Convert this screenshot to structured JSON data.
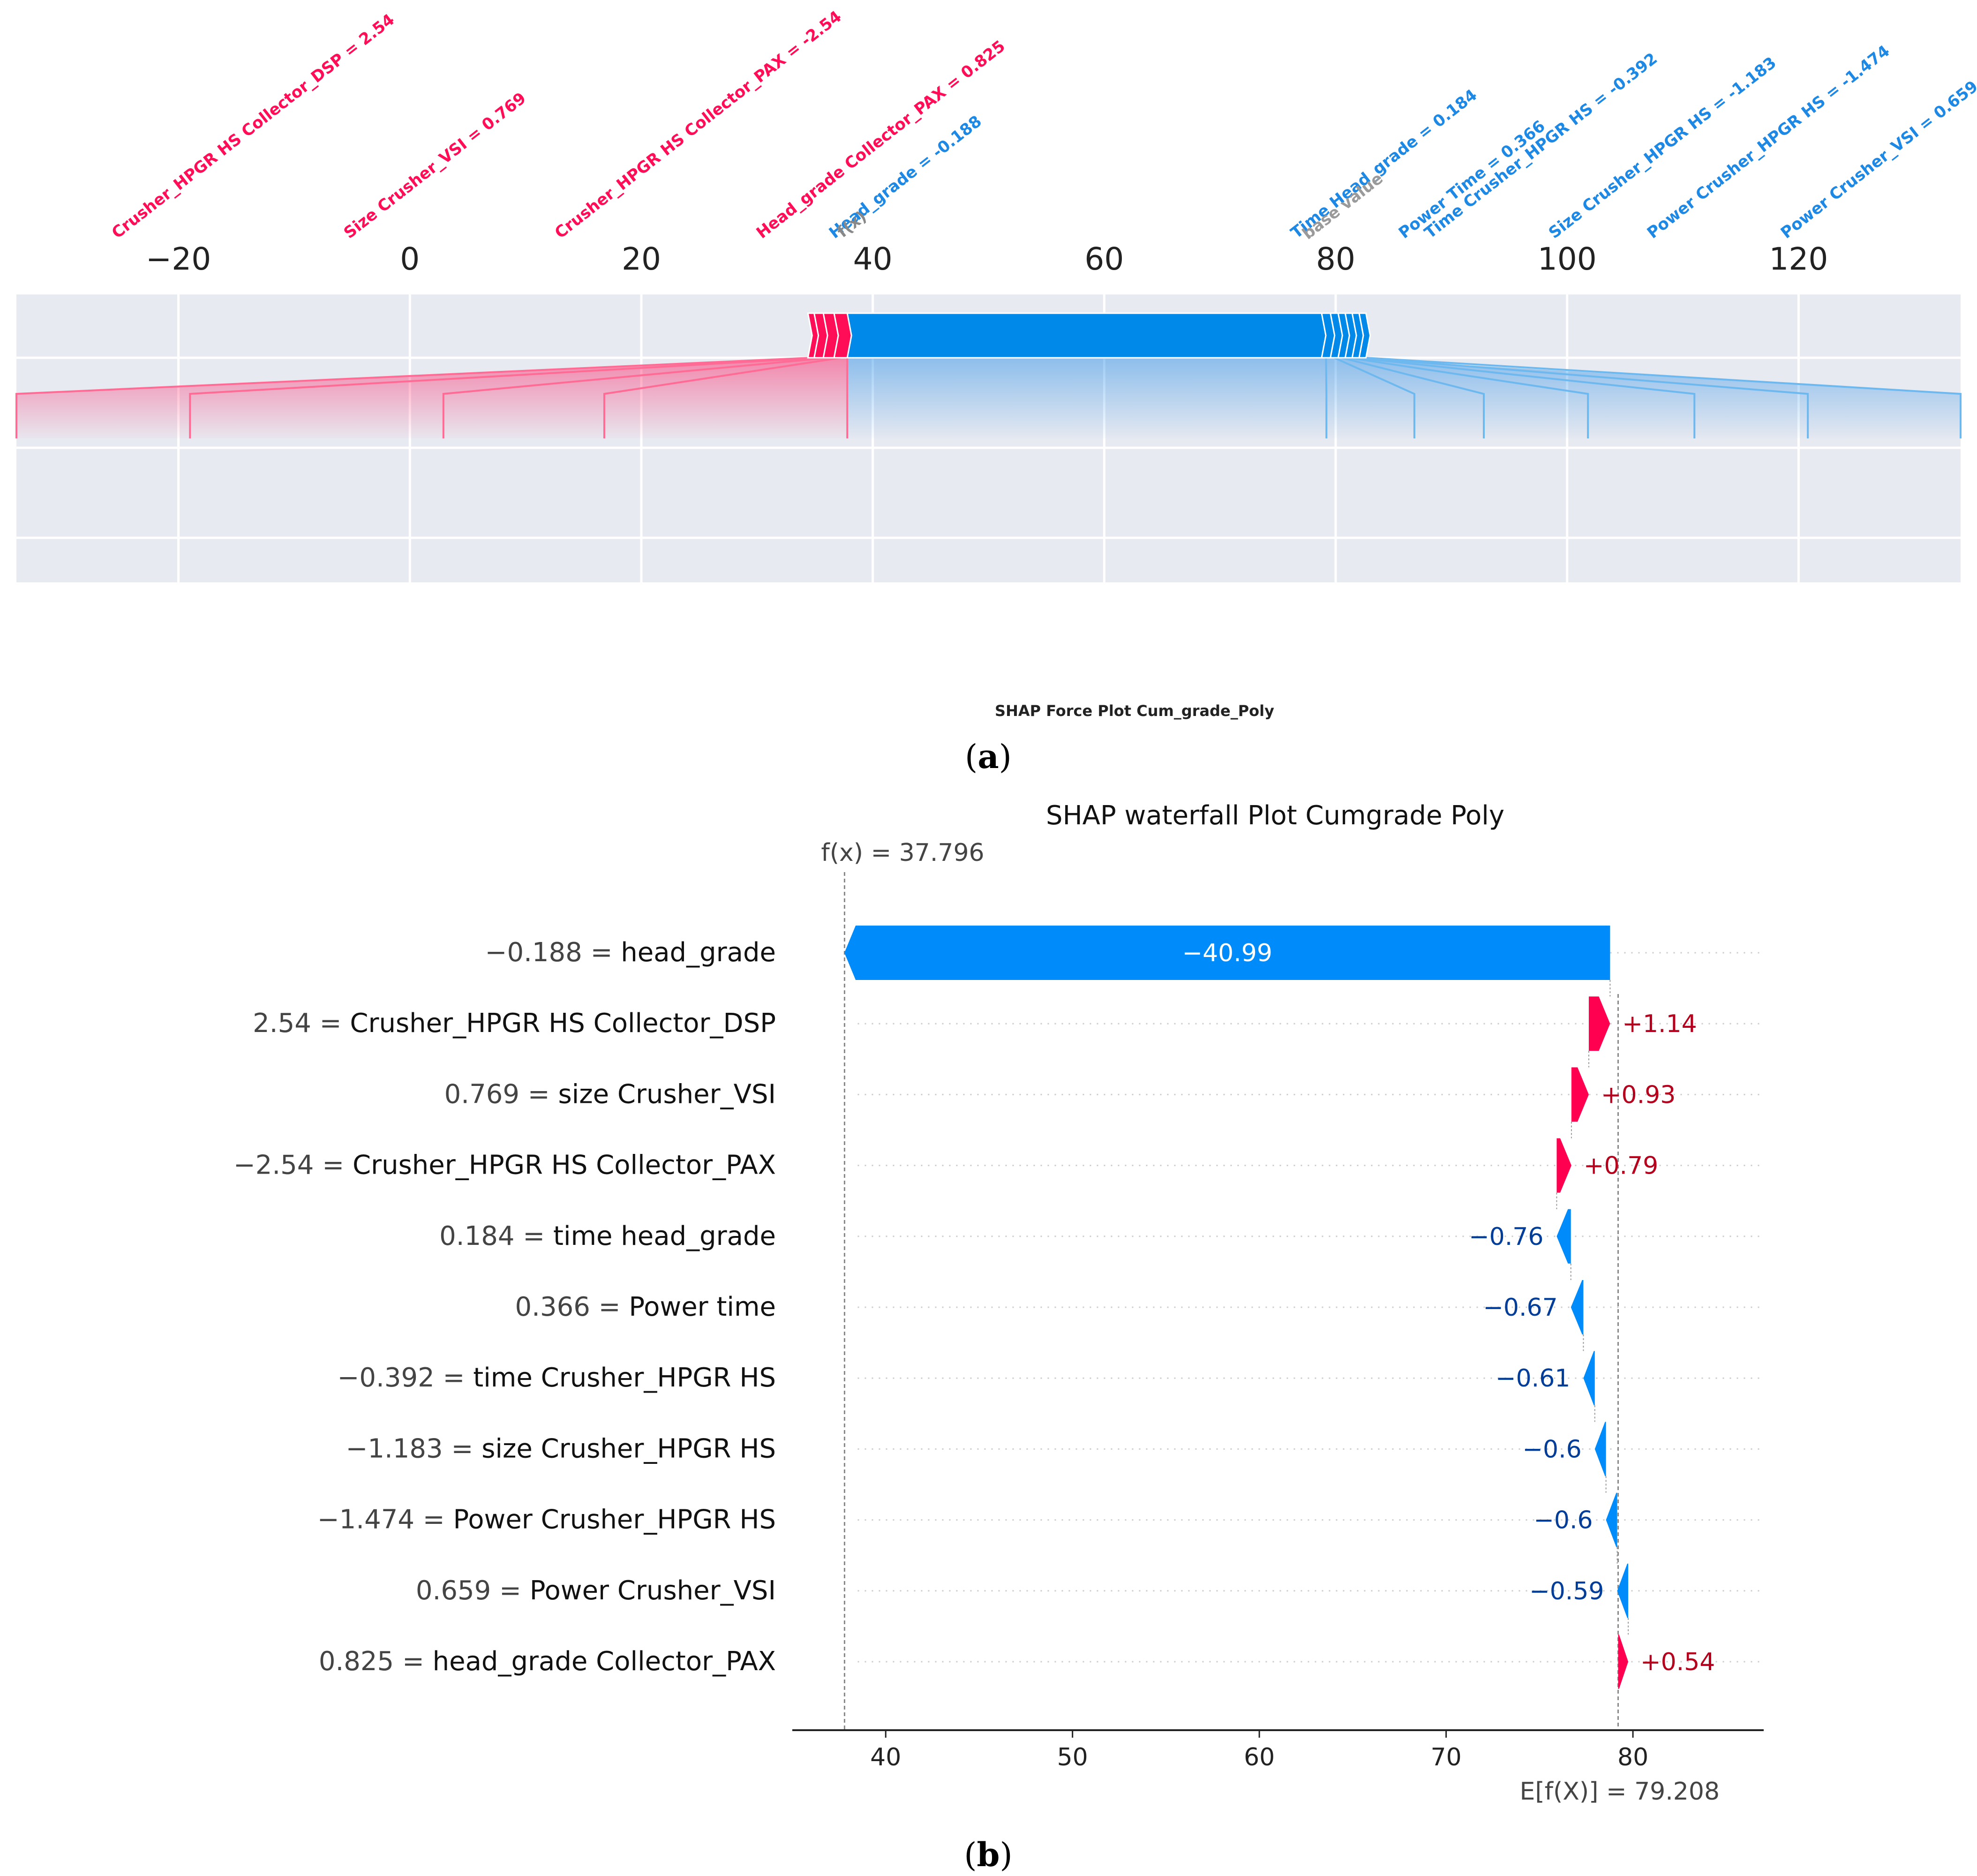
{
  "chart_data": [
    {
      "type": "force",
      "title": "SHAP Force Plot Cum_grade_Poly",
      "panel_label": "a",
      "x_range": [
        -34,
        134
      ],
      "x_ticks": [
        -20,
        0,
        20,
        40,
        60,
        80,
        100,
        120
      ],
      "output_value": 37.796,
      "base_value": 79.208,
      "output_label": "f(x)",
      "base_label": "base value",
      "colors": {
        "positive": "#ff0d57",
        "negative": "#1e88e5",
        "base": "#9a9a9a",
        "band": "#e8eaf1"
      },
      "positive_features": [
        {
          "label": "Head_grade Collector_PAX = 0.825",
          "value": 0.54
        },
        {
          "label": "Crusher_HPGR HS Collector_PAX = -2.54",
          "value": 0.79
        },
        {
          "label": "Size Crusher_VSI = 0.769",
          "value": 0.93
        },
        {
          "label": "Crusher_HPGR HS Collector_DSP = 2.54",
          "value": 1.14
        }
      ],
      "negative_features": [
        {
          "label": "Head_grade = -0.188",
          "value": -40.99
        },
        {
          "label": "Time Head_grade = 0.184",
          "value": -0.76
        },
        {
          "label": "Power Time = 0.366",
          "value": -0.67
        },
        {
          "label": "Time Crusher_HPGR HS = -0.392",
          "value": -0.61
        },
        {
          "label": "Size Crusher_HPGR HS = -1.183",
          "value": -0.6
        },
        {
          "label": "Power Crusher_HPGR HS = -1.474",
          "value": -0.6
        },
        {
          "label": "Power Crusher_VSI = 0.659",
          "value": -0.59
        }
      ]
    },
    {
      "type": "waterfall",
      "title": "SHAP waterfall Plot Cumgrade Poly",
      "panel_label": "b",
      "x_range": [
        35,
        87
      ],
      "x_ticks": [
        40,
        50,
        60,
        70,
        80
      ],
      "fx_label": "f(x) = 37.796",
      "fx_value": 37.796,
      "efx_label": "E[f(X)] = 79.208",
      "efx_value": 79.208,
      "colors": {
        "positive": "#ff0051",
        "negative": "#008bfb",
        "positive_text": "#b5001d",
        "negative_text": "#003d99"
      },
      "rows": [
        {
          "value_text": "−0.188",
          "feature": "head_grade",
          "shap": -40.99,
          "shap_label": "−40.99"
        },
        {
          "value_text": "2.54",
          "feature": "Crusher_HPGR HS Collector_DSP",
          "shap": 1.14,
          "shap_label": "+1.14"
        },
        {
          "value_text": "0.769",
          "feature": "size Crusher_VSI",
          "shap": 0.93,
          "shap_label": "+0.93"
        },
        {
          "value_text": "−2.54",
          "feature": "Crusher_HPGR HS Collector_PAX",
          "shap": 0.79,
          "shap_label": "+0.79"
        },
        {
          "value_text": "0.184",
          "feature": "time head_grade",
          "shap": -0.76,
          "shap_label": "−0.76"
        },
        {
          "value_text": "0.366",
          "feature": "Power time",
          "shap": -0.67,
          "shap_label": "−0.67"
        },
        {
          "value_text": "−0.392",
          "feature": "time Crusher_HPGR HS",
          "shap": -0.61,
          "shap_label": "−0.61"
        },
        {
          "value_text": "−1.183",
          "feature": "size Crusher_HPGR HS",
          "shap": -0.6,
          "shap_label": "−0.6"
        },
        {
          "value_text": "−1.474",
          "feature": "Power Crusher_HPGR HS",
          "shap": -0.6,
          "shap_label": "−0.6"
        },
        {
          "value_text": "0.659",
          "feature": "Power Crusher_VSI",
          "shap": -0.59,
          "shap_label": "−0.59"
        },
        {
          "value_text": "0.825",
          "feature": "head_grade Collector_PAX",
          "shap": 0.54,
          "shap_label": "+0.54"
        }
      ]
    }
  ]
}
